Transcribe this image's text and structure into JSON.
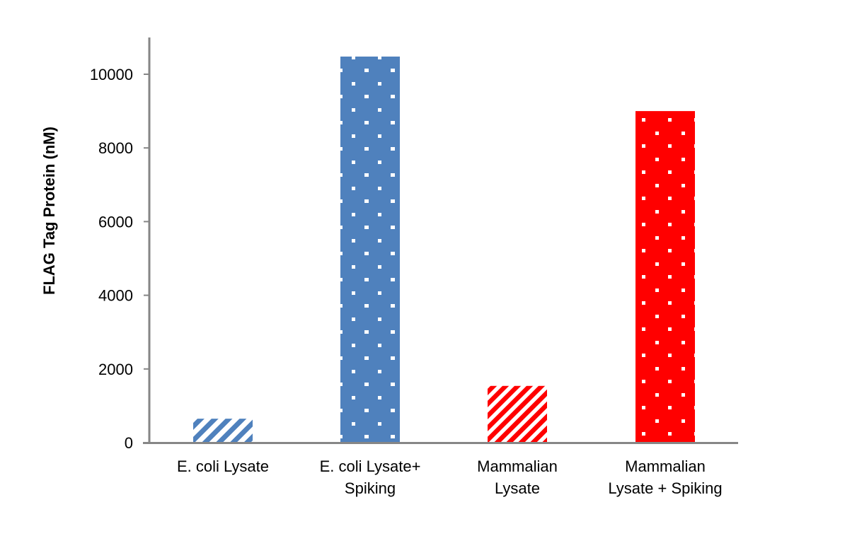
{
  "chart_data": {
    "type": "bar",
    "title": "",
    "xlabel": "",
    "ylabel": "FLAG Tag Protein (nM)",
    "ylim": [
      0,
      11000
    ],
    "yticks": [
      0,
      2000,
      4000,
      6000,
      8000,
      10000
    ],
    "grid": false,
    "legend": null,
    "categories": [
      "E. coli Lysate",
      "E. coli Lysate+ Spiking",
      "Mammalian Lysate",
      "Mammalian Lysate + Spiking"
    ],
    "category_label_lines": [
      [
        "E. coli Lysate"
      ],
      [
        "E. coli Lysate+",
        "Spiking"
      ],
      [
        "Mammalian",
        "Lysate"
      ],
      [
        "Mammalian",
        "Lysate + Spiking"
      ]
    ],
    "values": [
      650,
      10480,
      1540,
      9000
    ],
    "bar_styles": [
      {
        "color": "#4f81bd",
        "pattern": "diagonal-stripes"
      },
      {
        "color": "#4f81bd",
        "pattern": "dots"
      },
      {
        "color": "#ff0000",
        "pattern": "diagonal-stripes"
      },
      {
        "color": "#ff0000",
        "pattern": "dots"
      }
    ]
  },
  "colors": {
    "axis": "#868686",
    "blue": "#4f81bd",
    "red": "#ff0000"
  }
}
